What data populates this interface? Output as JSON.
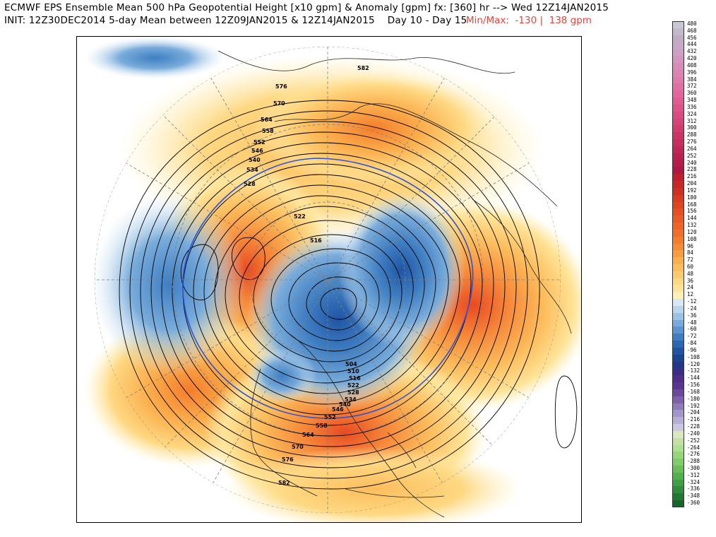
{
  "title": {
    "line1": "ECMWF EPS Ensemble Mean 500 hPa Geopotential Height [x10 gpm] & Anomaly [gpm] fx: [360] hr --> Wed 12Z14JAN2015",
    "line2": "INIT: 12Z30DEC2014 5-day Mean between 12Z09JAN2015 & 12Z14JAN2015    Day 10 - Day 15",
    "minmax": "Min/Max:  -130 |  138 gpm"
  },
  "map": {
    "projection": "north-polar-stereographic",
    "contour_labels": [
      "582",
      "576",
      "570",
      "564",
      "558",
      "552",
      "546",
      "540",
      "534",
      "528",
      "522",
      "516",
      "504",
      "510",
      "516",
      "522",
      "528",
      "534",
      "540",
      "546",
      "552",
      "558",
      "564",
      "570",
      "576",
      "582"
    ]
  },
  "colorbar": {
    "labels": [
      "480",
      "468",
      "456",
      "444",
      "432",
      "420",
      "408",
      "396",
      "384",
      "372",
      "360",
      "348",
      "336",
      "324",
      "312",
      "300",
      "288",
      "276",
      "264",
      "252",
      "240",
      "228",
      "216",
      "204",
      "192",
      "180",
      "168",
      "156",
      "144",
      "132",
      "120",
      "108",
      "96",
      "84",
      "72",
      "60",
      "48",
      "36",
      "24",
      "12",
      "-12",
      "-24",
      "-36",
      "-48",
      "-60",
      "-72",
      "-84",
      "-96",
      "-108",
      "-120",
      "-132",
      "-144",
      "-156",
      "-168",
      "-180",
      "-192",
      "-204",
      "-216",
      "-228",
      "-240",
      "-252",
      "-264",
      "-276",
      "-288",
      "-300",
      "-312",
      "-324",
      "-336",
      "-348",
      "-360"
    ],
    "colors": [
      "#c8c8d4",
      "#c3b9cc",
      "#bfadc5",
      "#c8a8c8",
      "#d0a0c4",
      "#d496bf",
      "#d88db9",
      "#dc83b2",
      "#df7aab",
      "#e070a3",
      "#e0669b",
      "#df5d92",
      "#dd5489",
      "#da4b80",
      "#d64377",
      "#d23b6e",
      "#cd3466",
      "#c72d5e",
      "#c12756",
      "#bb2150",
      "#b51c49",
      "#b01844",
      "#c0202e",
      "#c82828",
      "#d03024",
      "#d83a22",
      "#e04420",
      "#e64f22",
      "#ea5a24",
      "#ee6527",
      "#f0702a",
      "#f37d2d",
      "#f68c34",
      "#f99c3e",
      "#fbae4c",
      "#fcbd5c",
      "#fdcb6e",
      "#fed882",
      "#ffe498",
      "#fff0b8",
      "#d8e9f6",
      "#b9d6ee",
      "#99c2e5",
      "#79acdb",
      "#5a95cf",
      "#3f7ec2",
      "#2b68b3",
      "#1f55a3",
      "#1c4590",
      "#22378a",
      "#3a2d86",
      "#4d2e8a",
      "#5a3591",
      "#6a4a9d",
      "#7c62ab",
      "#8f7bb9",
      "#a495c8",
      "#b8aed5",
      "#cbc7e2",
      "#d9e8c0",
      "#c4e0a6",
      "#ade08f",
      "#96d67b",
      "#7fcc69",
      "#68bf5a",
      "#52b04d",
      "#3f9f43",
      "#2f8c3a",
      "#227832",
      "#17652a"
    ]
  }
}
